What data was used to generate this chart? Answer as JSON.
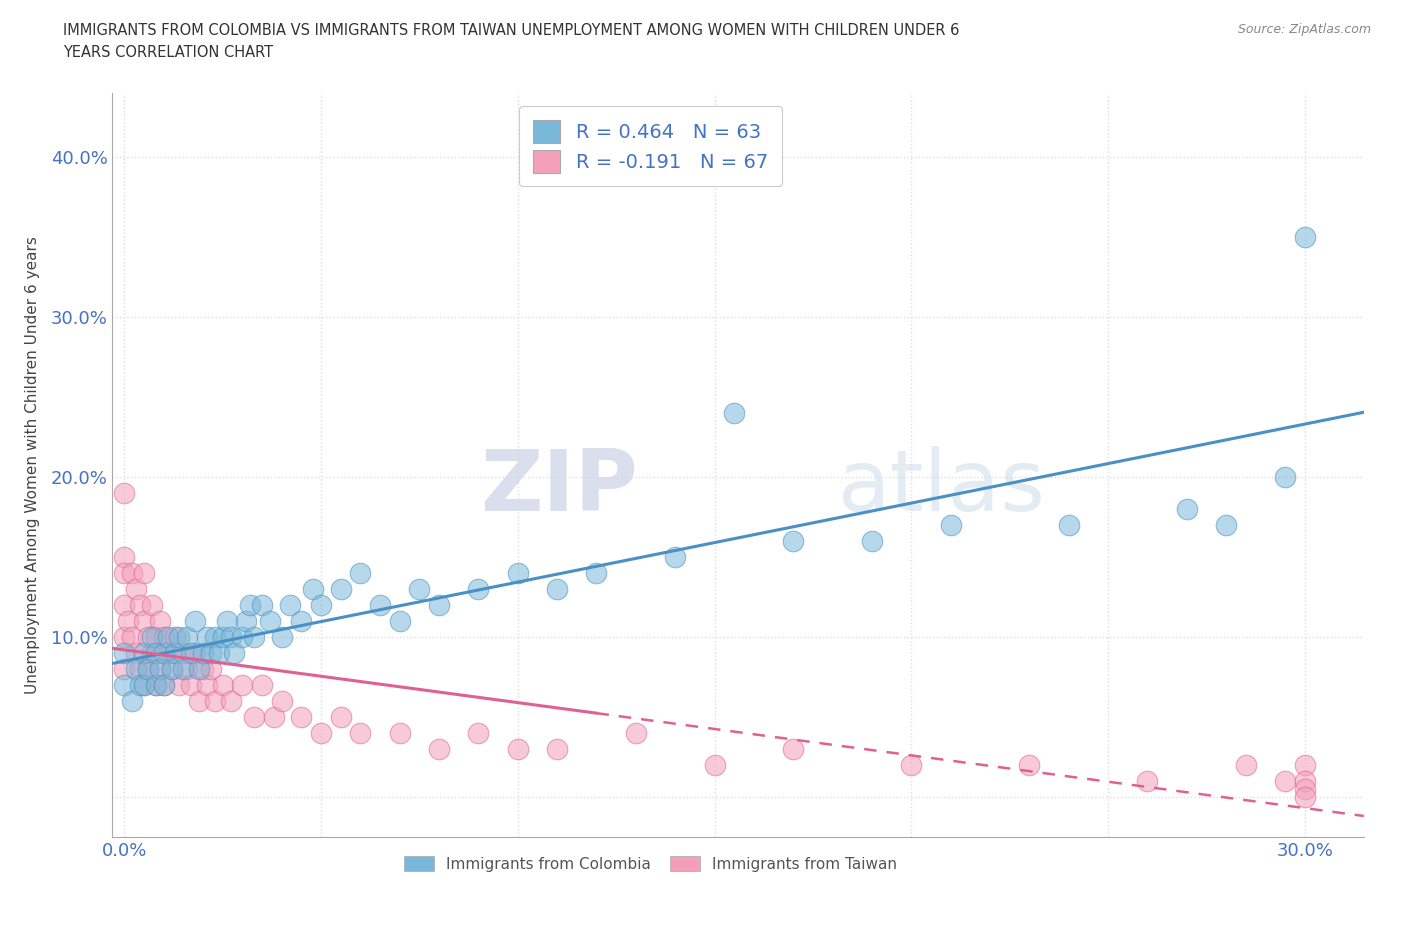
{
  "title_line1": "IMMIGRANTS FROM COLOMBIA VS IMMIGRANTS FROM TAIWAN UNEMPLOYMENT AMONG WOMEN WITH CHILDREN UNDER 6",
  "title_line2": "YEARS CORRELATION CHART",
  "source": "Source: ZipAtlas.com",
  "ylabel": "Unemployment Among Women with Children Under 6 years",
  "xlim": [
    -0.003,
    0.315
  ],
  "ylim": [
    -0.025,
    0.44
  ],
  "colombia_color": "#7ab8d9",
  "taiwan_color": "#f4a0bb",
  "colombia_line_color": "#4a90c4",
  "taiwan_line_color": "#e06090",
  "colombia_R": 0.464,
  "colombia_N": 63,
  "taiwan_R": -0.191,
  "taiwan_N": 67,
  "colombia_x": [
    0.0,
    0.0,
    0.002,
    0.003,
    0.004,
    0.005,
    0.005,
    0.006,
    0.007,
    0.008,
    0.008,
    0.009,
    0.01,
    0.01,
    0.011,
    0.012,
    0.013,
    0.014,
    0.015,
    0.016,
    0.017,
    0.018,
    0.019,
    0.02,
    0.021,
    0.022,
    0.023,
    0.024,
    0.025,
    0.026,
    0.027,
    0.028,
    0.03,
    0.031,
    0.032,
    0.033,
    0.035,
    0.037,
    0.04,
    0.042,
    0.045,
    0.048,
    0.05,
    0.055,
    0.06,
    0.065,
    0.07,
    0.075,
    0.08,
    0.09,
    0.1,
    0.11,
    0.12,
    0.14,
    0.155,
    0.17,
    0.19,
    0.21,
    0.24,
    0.27,
    0.28,
    0.295,
    0.3
  ],
  "colombia_y": [
    0.07,
    0.09,
    0.06,
    0.08,
    0.07,
    0.09,
    0.07,
    0.08,
    0.1,
    0.07,
    0.09,
    0.08,
    0.09,
    0.07,
    0.1,
    0.08,
    0.09,
    0.1,
    0.08,
    0.1,
    0.09,
    0.11,
    0.08,
    0.09,
    0.1,
    0.09,
    0.1,
    0.09,
    0.1,
    0.11,
    0.1,
    0.09,
    0.1,
    0.11,
    0.12,
    0.1,
    0.12,
    0.11,
    0.1,
    0.12,
    0.11,
    0.13,
    0.12,
    0.13,
    0.14,
    0.12,
    0.11,
    0.13,
    0.12,
    0.13,
    0.14,
    0.13,
    0.14,
    0.15,
    0.24,
    0.16,
    0.16,
    0.17,
    0.17,
    0.18,
    0.17,
    0.2,
    0.35
  ],
  "taiwan_x": [
    0.0,
    0.0,
    0.0,
    0.0,
    0.0,
    0.0,
    0.001,
    0.002,
    0.002,
    0.003,
    0.003,
    0.004,
    0.004,
    0.005,
    0.005,
    0.005,
    0.006,
    0.006,
    0.007,
    0.007,
    0.008,
    0.008,
    0.009,
    0.009,
    0.01,
    0.01,
    0.011,
    0.012,
    0.013,
    0.014,
    0.015,
    0.016,
    0.017,
    0.018,
    0.019,
    0.02,
    0.021,
    0.022,
    0.023,
    0.025,
    0.027,
    0.03,
    0.033,
    0.035,
    0.038,
    0.04,
    0.045,
    0.05,
    0.055,
    0.06,
    0.07,
    0.08,
    0.09,
    0.1,
    0.11,
    0.13,
    0.15,
    0.17,
    0.2,
    0.23,
    0.26,
    0.285,
    0.295,
    0.3,
    0.3,
    0.3,
    0.3
  ],
  "taiwan_y": [
    0.19,
    0.15,
    0.14,
    0.12,
    0.1,
    0.08,
    0.11,
    0.14,
    0.1,
    0.13,
    0.09,
    0.12,
    0.08,
    0.14,
    0.11,
    0.07,
    0.1,
    0.08,
    0.12,
    0.09,
    0.1,
    0.07,
    0.11,
    0.08,
    0.1,
    0.07,
    0.09,
    0.08,
    0.1,
    0.07,
    0.09,
    0.08,
    0.07,
    0.09,
    0.06,
    0.08,
    0.07,
    0.08,
    0.06,
    0.07,
    0.06,
    0.07,
    0.05,
    0.07,
    0.05,
    0.06,
    0.05,
    0.04,
    0.05,
    0.04,
    0.04,
    0.03,
    0.04,
    0.03,
    0.03,
    0.04,
    0.02,
    0.03,
    0.02,
    0.02,
    0.01,
    0.02,
    0.01,
    0.02,
    0.01,
    0.005,
    0.0
  ],
  "watermark_zip": "ZIP",
  "watermark_atlas": "atlas",
  "background_color": "#ffffff",
  "grid_color": "#dddddd",
  "legend_box_color": "#e8e8f8"
}
